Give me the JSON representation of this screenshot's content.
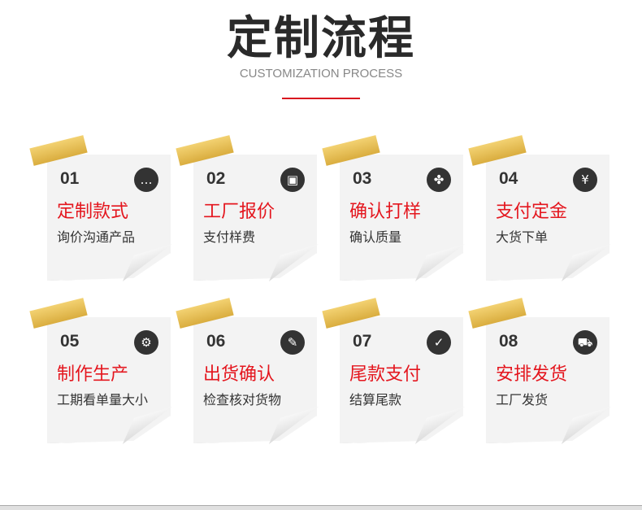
{
  "header": {
    "title": "定制流程",
    "subtitle": "CUSTOMIZATION PROCESS",
    "accent": "#d9161f"
  },
  "steps": [
    {
      "num": "01",
      "title": "定制款式",
      "desc": "询价沟通产品",
      "icon": "chat-icon",
      "glyph": "…"
    },
    {
      "num": "02",
      "title": "工厂报价",
      "desc": "支付样费",
      "icon": "box-icon",
      "glyph": "▣"
    },
    {
      "num": "03",
      "title": "确认打样",
      "desc": "确认质量",
      "icon": "clover-icon",
      "glyph": "✤"
    },
    {
      "num": "04",
      "title": "支付定金",
      "desc": "大货下单",
      "icon": "money-bag-icon",
      "glyph": "¥"
    },
    {
      "num": "05",
      "title": "制作生产",
      "desc": "工期看单量大小",
      "icon": "gear-icon",
      "glyph": "⚙"
    },
    {
      "num": "06",
      "title": "出货确认",
      "desc": "检查核对货物",
      "icon": "clipboard-check-icon",
      "glyph": "✎"
    },
    {
      "num": "07",
      "title": "尾款支付",
      "desc": "结算尾款",
      "icon": "chat-check-icon",
      "glyph": "✓"
    },
    {
      "num": "08",
      "title": "安排发货",
      "desc": "工厂发货",
      "icon": "truck-icon",
      "glyph": "⛟"
    }
  ]
}
